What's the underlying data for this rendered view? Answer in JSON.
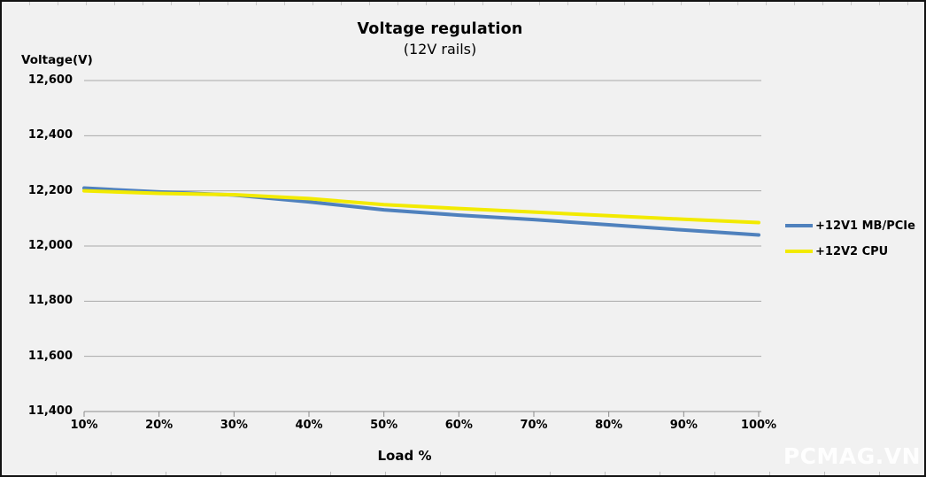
{
  "page": {
    "watermark": "PCMAG.VN",
    "background_color": "#f1f1f1",
    "border_color": "#121212"
  },
  "chart_data": {
    "type": "line",
    "title": "Voltage regulation",
    "subtitle": "(12V rails)",
    "xlabel": "Load %",
    "ylabel": "Voltage(V)",
    "categories": [
      "10%",
      "20%",
      "30%",
      "40%",
      "50%",
      "60%",
      "70%",
      "80%",
      "90%",
      "100%"
    ],
    "x_values": [
      10,
      20,
      30,
      40,
      50,
      60,
      70,
      80,
      90,
      100
    ],
    "xlim": [
      10,
      100
    ],
    "series": [
      {
        "name": "+12V1 MB/PCIe",
        "color": "#4f81bd",
        "values": [
          12210,
          12196,
          12185,
          12160,
          12131,
          12112,
          12096,
          12077,
          12058,
          12040
        ]
      },
      {
        "name": "+12V2 CPU",
        "color": "#f2ea00",
        "values": [
          12200,
          12191,
          12186,
          12172,
          12150,
          12136,
          12123,
          12110,
          12097,
          12085
        ]
      }
    ],
    "ylim": [
      11400,
      12600
    ],
    "ytick_step": 200,
    "ytick_labels": [
      "11,400",
      "11,600",
      "11,800",
      "12,000",
      "12,200",
      "12,400",
      "12,600"
    ],
    "grid": "horizontal",
    "grid_color": "#a9a9a9",
    "axis_color": "#8a8a8a",
    "legend_position": "right"
  }
}
